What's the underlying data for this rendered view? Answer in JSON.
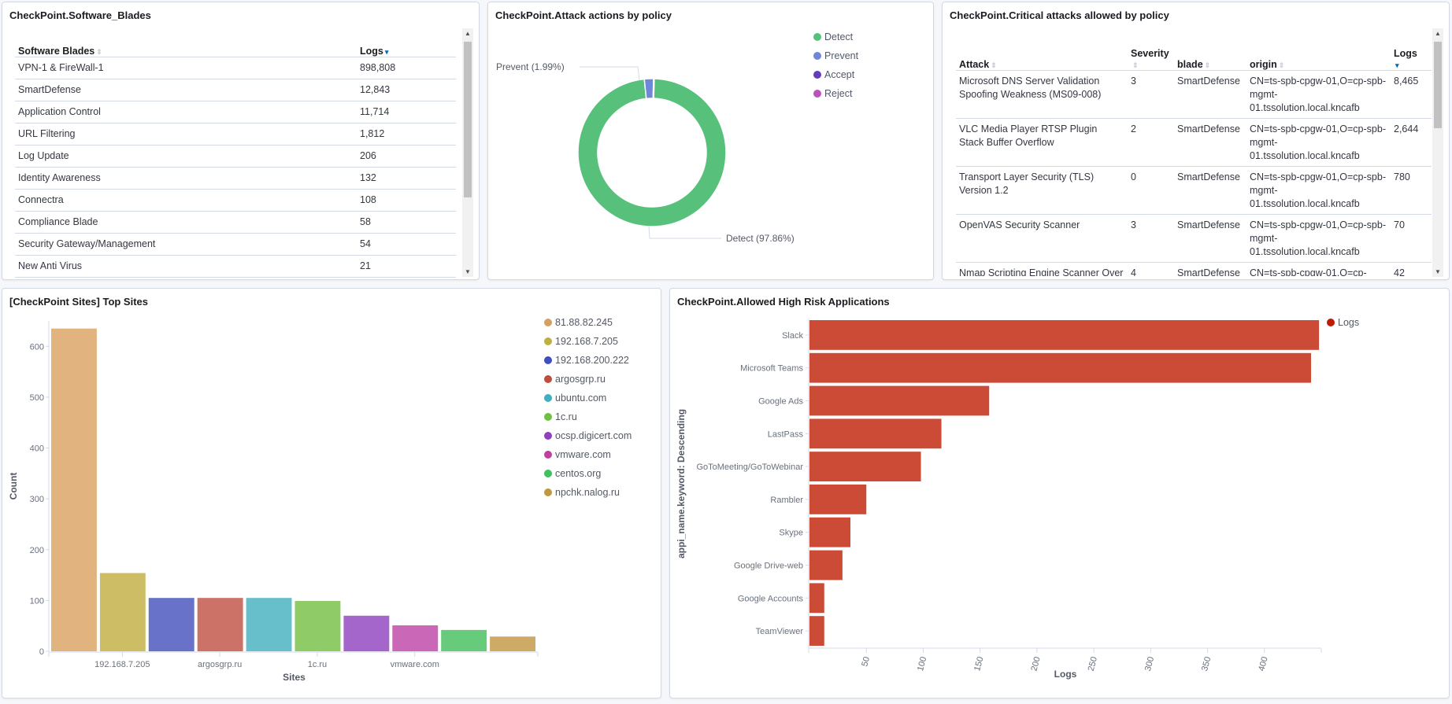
{
  "software_blades": {
    "title": "CheckPoint.Software_Blades",
    "columns": [
      "Software Blades",
      "Logs"
    ],
    "rows": [
      [
        "VPN-1 & FireWall-1",
        "898,808"
      ],
      [
        "SmartDefense",
        "12,843"
      ],
      [
        "Application Control",
        "11,714"
      ],
      [
        "URL Filtering",
        "1,812"
      ],
      [
        "Log Update",
        "206"
      ],
      [
        "Identity Awareness",
        "132"
      ],
      [
        "Connectra",
        "108"
      ],
      [
        "Compliance Blade",
        "58"
      ],
      [
        "Security Gateway/Management",
        "54"
      ],
      [
        "New Anti Virus",
        "21"
      ]
    ]
  },
  "attack_actions": {
    "title": "CheckPoint.Attack actions by policy",
    "chart_data": {
      "type": "pie",
      "donut": true,
      "legend_position": "top-right",
      "slices": [
        {
          "name": "Detect",
          "percent": 97.86,
          "color": "#57c17b",
          "label": "Detect (97.86%)"
        },
        {
          "name": "Prevent",
          "percent": 1.99,
          "color": "#6f87d8",
          "label": "Prevent (1.99%)"
        },
        {
          "name": "Accept",
          "percent": 0.1,
          "color": "#663db8",
          "label": ""
        },
        {
          "name": "Reject",
          "percent": 0.05,
          "color": "#bc52bc",
          "label": ""
        }
      ]
    }
  },
  "critical_attacks": {
    "title": "CheckPoint.Critical attacks allowed by policy",
    "columns": [
      "Attack",
      "Severity",
      "blade",
      "origin",
      "Logs"
    ],
    "rows": [
      [
        "Microsoft DNS Server Validation Spoofing Weakness (MS09-008)",
        "3",
        "SmartDefense",
        "CN=ts-spb-cpgw-01,O=cp-spb-mgmt-01.tssolution.local.kncafb",
        "8,465"
      ],
      [
        "VLC Media Player RTSP Plugin Stack Buffer Overflow",
        "2",
        "SmartDefense",
        "CN=ts-spb-cpgw-01,O=cp-spb-mgmt-01.tssolution.local.kncafb",
        "2,644"
      ],
      [
        "Transport Layer Security (TLS) Version 1.2",
        "0",
        "SmartDefense",
        "CN=ts-spb-cpgw-01,O=cp-spb-mgmt-01.tssolution.local.kncafb",
        "780"
      ],
      [
        "OpenVAS Security Scanner",
        "3",
        "SmartDefense",
        "CN=ts-spb-cpgw-01,O=cp-spb-mgmt-01.tssolution.local.kncafb",
        "70"
      ],
      [
        "Nmap Scripting Engine Scanner Over",
        "4",
        "SmartDefense",
        "CN=ts-spb-cpgw-01,O=cp-",
        "42"
      ]
    ]
  },
  "top_sites": {
    "title": "[CheckPoint Sites] Top Sites",
    "chart_data": {
      "type": "bar",
      "xlabel": "Sites",
      "ylabel": "Count",
      "ylim": [
        0,
        650
      ],
      "yticks": [
        0,
        100,
        200,
        300,
        400,
        500,
        600
      ],
      "xtick_labels": [
        "192.168.7.205",
        "argosgrp.ru",
        "1c.ru",
        "vmware.com"
      ],
      "legend_position": "right",
      "grid": false,
      "categories": [
        "81.88.82.245",
        "192.168.7.205",
        "192.168.200.222",
        "argosgrp.ru",
        "ubuntu.com",
        "1c.ru",
        "ocsp.digicert.com",
        "vmware.com",
        "centos.org",
        "npchk.nalog.ru"
      ],
      "values": [
        635,
        154,
        105,
        105,
        105,
        99,
        70,
        51,
        42,
        29
      ],
      "colors": [
        "#e1b37e",
        "#cdbe66",
        "#6872c9",
        "#cc7266",
        "#67bfcc",
        "#8fcb67",
        "#a566cb",
        "#cb67b7",
        "#66cb7a",
        "#cdaa66"
      ],
      "legend_colors": [
        "#d6a064",
        "#c0b040",
        "#3f4fc0",
        "#c04c3c",
        "#40b0c0",
        "#70c040",
        "#9040c0",
        "#c040a0",
        "#40c060",
        "#c09840"
      ]
    }
  },
  "high_risk_apps": {
    "title": "CheckPoint.Allowed High Risk Applications",
    "chart_data": {
      "type": "bar",
      "orientation": "horizontal",
      "xlabel": "Logs",
      "ylabel": "appi_name.keyword: Descending",
      "xlim": [
        0,
        450
      ],
      "xticks": [
        50,
        100,
        150,
        200,
        250,
        300,
        350,
        400
      ],
      "legend_position": "top-right",
      "grid": false,
      "series": [
        {
          "name": "Logs",
          "color": "#cc4b36",
          "legend_color": "#bf1b00"
        }
      ],
      "categories": [
        "Slack",
        "Microsoft Teams",
        "Google Ads",
        "LastPass",
        "GoToMeeting/GoToWebinar",
        "Rambler",
        "Skype",
        "Google Drive-web",
        "Google Accounts",
        "TeamViewer"
      ],
      "values": [
        448,
        441,
        158,
        116,
        98,
        50,
        36,
        29,
        13,
        13
      ]
    }
  }
}
